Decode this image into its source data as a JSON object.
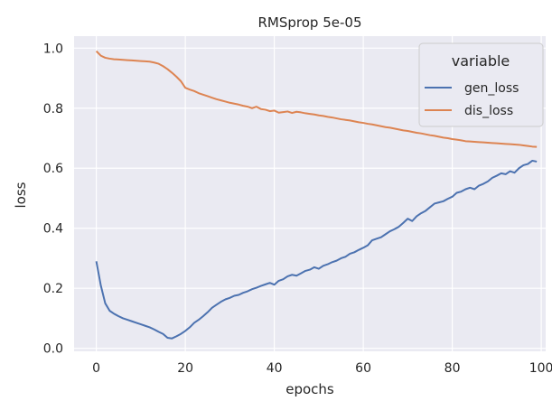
{
  "chart_data": {
    "type": "line",
    "title": "RMSprop 5e-05",
    "xlabel": "epochs",
    "ylabel": "loss",
    "xlim": [
      -5,
      101
    ],
    "ylim": [
      -0.01,
      1.04
    ],
    "xticks": [
      0,
      20,
      40,
      60,
      80,
      100
    ],
    "yticks": [
      0.0,
      0.2,
      0.4,
      0.6,
      0.8,
      1.0
    ],
    "xtick_labels": [
      "0",
      "20",
      "40",
      "60",
      "80",
      "100"
    ],
    "ytick_labels": [
      "0.0",
      "0.2",
      "0.4",
      "0.6",
      "0.8",
      "1.0"
    ],
    "grid": true,
    "legend": {
      "title": "variable",
      "position": "top-right"
    },
    "colors": {
      "background": "#EAEAF2",
      "grid": "#FFFFFF",
      "gen_loss": "#4C72B0",
      "dis_loss": "#DD8452"
    },
    "series": [
      {
        "name": "gen_loss",
        "x": [
          0,
          1,
          2,
          3,
          4,
          5,
          6,
          7,
          8,
          9,
          10,
          11,
          12,
          13,
          14,
          15,
          16,
          17,
          18,
          19,
          20,
          21,
          22,
          23,
          24,
          25,
          26,
          27,
          28,
          29,
          30,
          31,
          32,
          33,
          34,
          35,
          36,
          37,
          38,
          39,
          40,
          41,
          42,
          43,
          44,
          45,
          46,
          47,
          48,
          49,
          50,
          51,
          52,
          53,
          54,
          55,
          56,
          57,
          58,
          59,
          60,
          61,
          62,
          63,
          64,
          65,
          66,
          67,
          68,
          69,
          70,
          71,
          72,
          73,
          74,
          75,
          76,
          77,
          78,
          79,
          80,
          81,
          82,
          83,
          84,
          85,
          86,
          87,
          88,
          89,
          90,
          91,
          92,
          93,
          94,
          95,
          96,
          97,
          98,
          99
        ],
        "values": [
          0.29,
          0.21,
          0.15,
          0.125,
          0.115,
          0.107,
          0.1,
          0.095,
          0.09,
          0.085,
          0.08,
          0.075,
          0.07,
          0.063,
          0.055,
          0.048,
          0.035,
          0.033,
          0.04,
          0.048,
          0.058,
          0.07,
          0.085,
          0.095,
          0.107,
          0.12,
          0.135,
          0.145,
          0.155,
          0.163,
          0.168,
          0.175,
          0.178,
          0.185,
          0.19,
          0.197,
          0.202,
          0.208,
          0.213,
          0.218,
          0.212,
          0.225,
          0.23,
          0.24,
          0.245,
          0.242,
          0.25,
          0.258,
          0.262,
          0.27,
          0.265,
          0.275,
          0.28,
          0.287,
          0.292,
          0.3,
          0.305,
          0.315,
          0.32,
          0.328,
          0.335,
          0.343,
          0.36,
          0.365,
          0.37,
          0.38,
          0.39,
          0.397,
          0.405,
          0.418,
          0.432,
          0.424,
          0.44,
          0.45,
          0.458,
          0.47,
          0.482,
          0.486,
          0.49,
          0.498,
          0.505,
          0.518,
          0.522,
          0.53,
          0.535,
          0.53,
          0.542,
          0.548,
          0.556,
          0.568,
          0.575,
          0.583,
          0.58,
          0.59,
          0.585,
          0.6,
          0.61,
          0.614,
          0.625,
          0.622
        ]
      },
      {
        "name": "dis_loss",
        "x": [
          0,
          1,
          2,
          3,
          4,
          5,
          6,
          7,
          8,
          9,
          10,
          11,
          12,
          13,
          14,
          15,
          16,
          17,
          18,
          19,
          20,
          21,
          22,
          23,
          24,
          25,
          26,
          27,
          28,
          29,
          30,
          31,
          32,
          33,
          34,
          35,
          36,
          37,
          38,
          39,
          40,
          41,
          42,
          43,
          44,
          45,
          46,
          47,
          48,
          49,
          50,
          51,
          52,
          53,
          54,
          55,
          56,
          57,
          58,
          59,
          60,
          61,
          62,
          63,
          64,
          65,
          66,
          67,
          68,
          69,
          70,
          71,
          72,
          73,
          74,
          75,
          76,
          77,
          78,
          79,
          80,
          81,
          82,
          83,
          84,
          85,
          86,
          87,
          88,
          89,
          90,
          91,
          92,
          93,
          94,
          95,
          96,
          97,
          98,
          99
        ],
        "values": [
          0.99,
          0.975,
          0.968,
          0.965,
          0.963,
          0.962,
          0.961,
          0.96,
          0.959,
          0.958,
          0.957,
          0.956,
          0.955,
          0.952,
          0.948,
          0.94,
          0.93,
          0.918,
          0.905,
          0.89,
          0.868,
          0.862,
          0.857,
          0.85,
          0.845,
          0.84,
          0.835,
          0.83,
          0.826,
          0.822,
          0.818,
          0.815,
          0.812,
          0.808,
          0.805,
          0.8,
          0.805,
          0.797,
          0.795,
          0.79,
          0.792,
          0.785,
          0.787,
          0.789,
          0.784,
          0.788,
          0.786,
          0.783,
          0.781,
          0.779,
          0.776,
          0.774,
          0.771,
          0.769,
          0.766,
          0.763,
          0.761,
          0.759,
          0.756,
          0.753,
          0.751,
          0.748,
          0.746,
          0.743,
          0.74,
          0.737,
          0.735,
          0.732,
          0.729,
          0.726,
          0.724,
          0.721,
          0.718,
          0.716,
          0.713,
          0.71,
          0.708,
          0.705,
          0.702,
          0.7,
          0.697,
          0.695,
          0.693,
          0.69,
          0.689,
          0.688,
          0.687,
          0.686,
          0.685,
          0.684,
          0.683,
          0.682,
          0.681,
          0.68,
          0.679,
          0.678,
          0.676,
          0.674,
          0.672,
          0.671
        ]
      }
    ]
  }
}
